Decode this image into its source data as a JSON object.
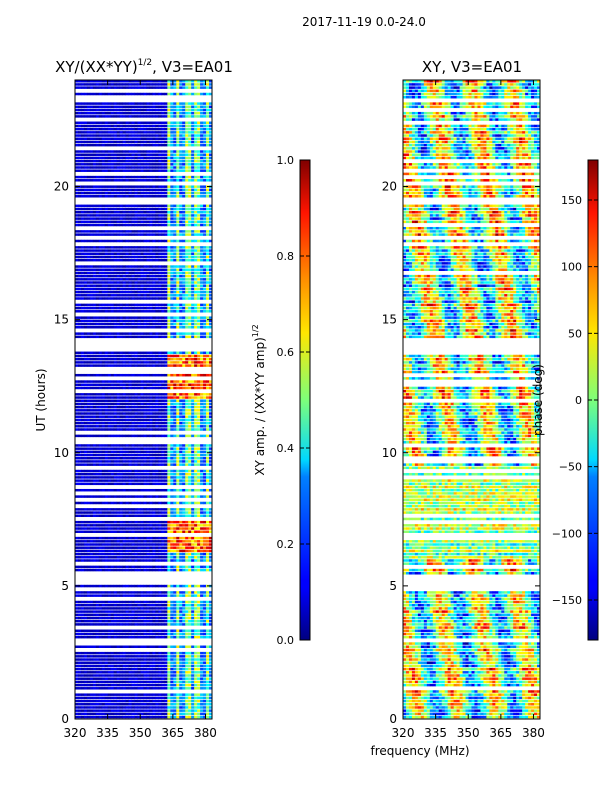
{
  "suptitle": "2017-11-19 0.0-24.0",
  "xlabel": "frequency (MHz)",
  "ylabel": "UT (hours)",
  "chart_data": [
    {
      "type": "heatmap",
      "id": "amp",
      "title_main": "XY/(XX*YY)",
      "title_sup": "1/2",
      "title_rest": ", V3=EA01",
      "xlabel": "frequency (MHz)",
      "ylabel": "UT (hours)",
      "xlim": [
        320,
        383
      ],
      "ylim": [
        0,
        24
      ],
      "xticks": [
        320,
        335,
        350,
        365,
        380
      ],
      "yticks": [
        0,
        5,
        10,
        15,
        20
      ],
      "colorbar": {
        "label_main": "XY amp. / (XX*YY amp)",
        "label_sup": "1/2",
        "range": [
          0.0,
          1.0
        ],
        "ticks": [
          "0.0",
          "0.2",
          "0.4",
          "0.6",
          "0.8",
          "1.0"
        ],
        "tick_values": [
          0.0,
          0.2,
          0.4,
          0.6,
          0.8,
          1.0
        ]
      },
      "blank_bands_hours": [
        [
          5.0,
          5.4
        ],
        [
          13.8,
          14.3
        ],
        [
          19.3,
          19.5
        ],
        [
          22.4,
          22.5
        ]
      ]
    },
    {
      "type": "heatmap",
      "id": "phase",
      "title": "XY, V3=EA01",
      "xlim": [
        320,
        383
      ],
      "ylim": [
        0,
        24
      ],
      "xticks": [
        320,
        335,
        350,
        365,
        380
      ],
      "yticks": [
        0,
        5,
        10,
        15,
        20
      ],
      "colorbar": {
        "label": "phase (deg)",
        "range": [
          -180,
          180
        ],
        "ticks": [
          "150",
          "100",
          "50",
          "0",
          "−50",
          "−100",
          "−150"
        ],
        "tick_values": [
          150,
          100,
          50,
          0,
          -50,
          -100,
          -150
        ]
      },
      "blank_bands_hours": [
        [
          5.0,
          5.4
        ],
        [
          13.8,
          14.3
        ],
        [
          19.3,
          19.5
        ]
      ]
    }
  ],
  "colormap": "jet"
}
